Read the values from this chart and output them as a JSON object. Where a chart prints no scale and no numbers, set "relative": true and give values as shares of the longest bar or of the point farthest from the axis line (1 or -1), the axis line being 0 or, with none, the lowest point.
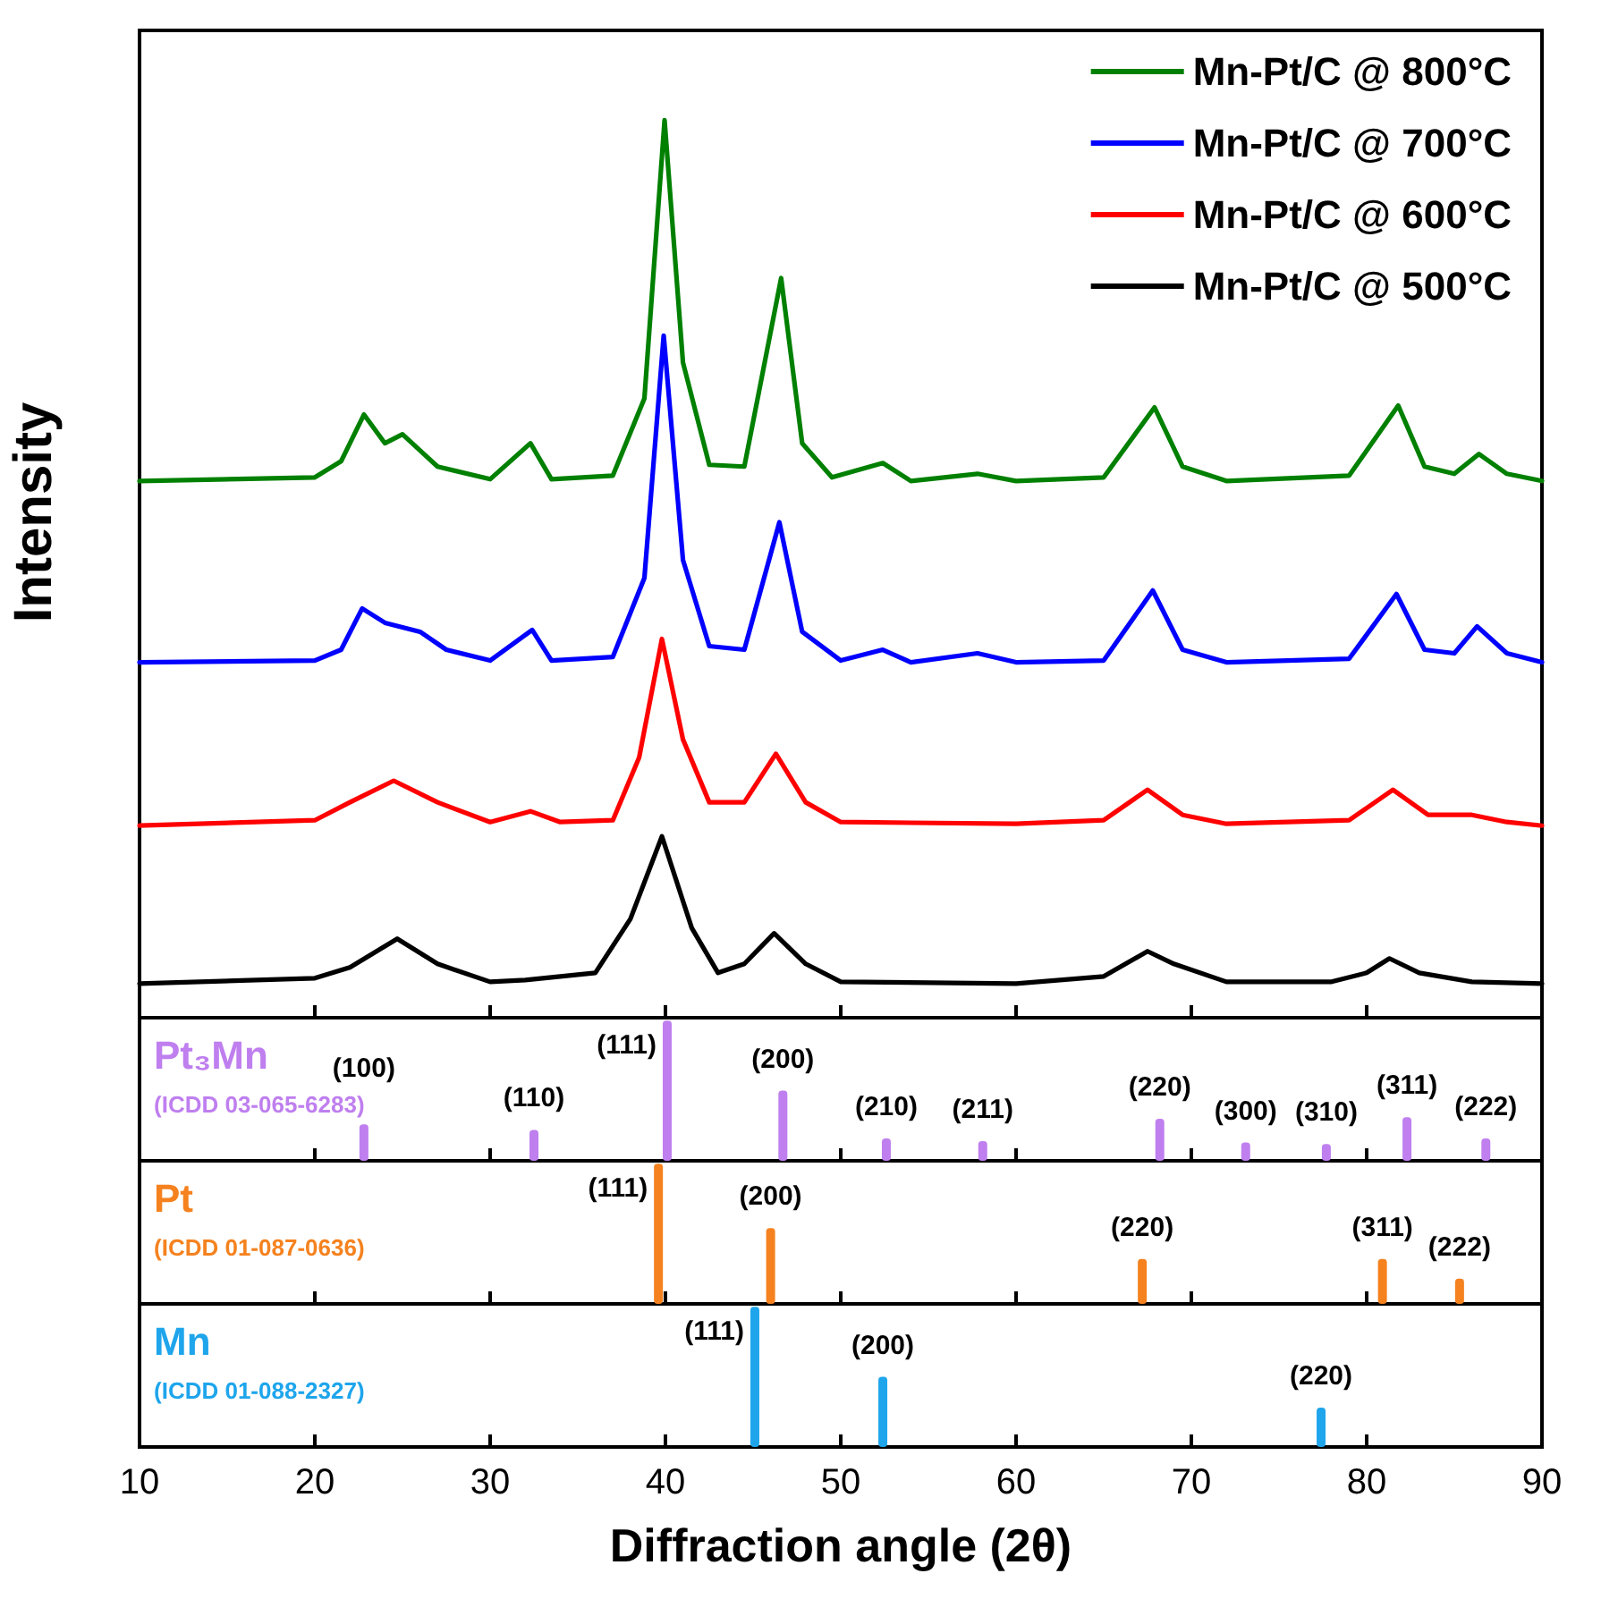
{
  "chart_data": [
    {
      "type": "line",
      "relative": true,
      "ylabel": "Intensity",
      "xlim": [
        10,
        90
      ],
      "xticks": [
        10,
        20,
        30,
        40,
        50,
        60,
        70,
        80,
        90
      ],
      "tick_labels": false,
      "grid": false,
      "marker": "none",
      "line_style": "solid",
      "legend": "top right",
      "series": [
        {
          "name": "Mn-Pt/C @ 800°C",
          "color": "#008000",
          "x": [
            10,
            20,
            21.5,
            22.8,
            24,
            25,
            27,
            30,
            32.3,
            33.5,
            37,
            38.8,
            39.95,
            41,
            42.5,
            44.5,
            46.6,
            47.8,
            49.5,
            52.4,
            54,
            57.8,
            60,
            65,
            67.9,
            69.5,
            72,
            79,
            81.8,
            83.3,
            85,
            86.4,
            88,
            90
          ],
          "values": [
            0.598,
            0.602,
            0.62,
            0.672,
            0.64,
            0.65,
            0.614,
            0.6,
            0.64,
            0.6,
            0.604,
            0.69,
            1,
            0.73,
            0.616,
            0.614,
            0.824,
            0.64,
            0.602,
            0.618,
            0.598,
            0.606,
            0.598,
            0.602,
            0.68,
            0.614,
            0.598,
            0.604,
            0.682,
            0.614,
            0.606,
            0.628,
            0.606,
            0.598
          ]
        },
        {
          "name": "Mn-Pt/C @ 700°C",
          "color": "#0000ff",
          "x": [
            10,
            20,
            21.5,
            22.7,
            24,
            26,
            27.5,
            30,
            32.4,
            33.5,
            37,
            38.8,
            39.9,
            41,
            42.5,
            44.5,
            46.5,
            47.8,
            50,
            52.4,
            54,
            57.8,
            60,
            65,
            67.8,
            69.5,
            72,
            79,
            81.7,
            83.3,
            85,
            86.3,
            88,
            90
          ],
          "values": [
            0.396,
            0.398,
            0.41,
            0.456,
            0.44,
            0.43,
            0.41,
            0.398,
            0.432,
            0.398,
            0.402,
            0.49,
            0.76,
            0.51,
            0.414,
            0.41,
            0.552,
            0.43,
            0.398,
            0.41,
            0.396,
            0.406,
            0.396,
            0.398,
            0.476,
            0.41,
            0.396,
            0.4,
            0.472,
            0.41,
            0.406,
            0.436,
            0.406,
            0.396
          ]
        },
        {
          "name": "Mn-Pt/C @ 600°C",
          "color": "#ff0000",
          "x": [
            10,
            20,
            22,
            24.5,
            27,
            30,
            32.3,
            34,
            37,
            38.5,
            39.8,
            41,
            42.5,
            44.5,
            46.3,
            48,
            50,
            60,
            65,
            67.5,
            69.5,
            72,
            79,
            81.5,
            83.5,
            86,
            88,
            90
          ],
          "values": [
            0.214,
            0.22,
            0.24,
            0.264,
            0.24,
            0.218,
            0.23,
            0.218,
            0.22,
            0.29,
            0.422,
            0.31,
            0.24,
            0.24,
            0.294,
            0.24,
            0.218,
            0.216,
            0.22,
            0.254,
            0.226,
            0.216,
            0.22,
            0.254,
            0.226,
            0.226,
            0.218,
            0.214
          ]
        },
        {
          "name": "Mn-Pt/C @ 500°C",
          "color": "#000000",
          "x": [
            10,
            20,
            22,
            24.7,
            27,
            30,
            32,
            36,
            38,
            39.8,
            41.5,
            43,
            44.5,
            46.2,
            48,
            50,
            60,
            65,
            67.5,
            69,
            72,
            78,
            80,
            81.3,
            83,
            86,
            90
          ],
          "values": [
            0.038,
            0.044,
            0.056,
            0.088,
            0.06,
            0.04,
            0.042,
            0.05,
            0.11,
            0.202,
            0.1,
            0.05,
            0.06,
            0.094,
            0.06,
            0.04,
            0.038,
            0.046,
            0.074,
            0.06,
            0.04,
            0.04,
            0.05,
            0.066,
            0.05,
            0.04,
            0.038
          ]
        }
      ]
    },
    {
      "type": "bar",
      "relative": true,
      "title": "Pt₃Mn",
      "color": "#bf7fef",
      "xlim": [
        10,
        90
      ],
      "xticks": [
        10,
        20,
        30,
        40,
        50,
        60,
        70,
        80,
        90
      ],
      "tick_labels": false,
      "grid": false,
      "x": [
        22.8,
        32.5,
        40.1,
        46.7,
        52.6,
        58.1,
        68.2,
        73.1,
        77.7,
        82.3,
        86.8
      ],
      "values": [
        0.26,
        0.22,
        1,
        0.5,
        0.16,
        0.14,
        0.3,
        0.13,
        0.12,
        0.31,
        0.16
      ],
      "annotations": [
        "(ICDD 03-065-6283)",
        {
          "text": "(100)",
          "x": 22.8,
          "y": 0.26
        },
        {
          "text": "(110)",
          "x": 32.5,
          "y": 0.22
        },
        {
          "text": "(111)",
          "x": 40.1,
          "y": 1
        },
        {
          "text": "(200)",
          "x": 46.7,
          "y": 0.5
        },
        {
          "text": "(210)",
          "x": 52.6,
          "y": 0.16
        },
        {
          "text": "(211)",
          "x": 58.1,
          "y": 0.14
        },
        {
          "text": "(220)",
          "x": 68.2,
          "y": 0.3
        },
        {
          "text": "(300)",
          "x": 73.1,
          "y": 0.13
        },
        {
          "text": "(310)",
          "x": 77.7,
          "y": 0.12
        },
        {
          "text": "(311)",
          "x": 82.3,
          "y": 0.31
        },
        {
          "text": "(222)",
          "x": 86.8,
          "y": 0.16
        }
      ]
    },
    {
      "type": "bar",
      "relative": true,
      "title": "Pt",
      "color": "#f5821f",
      "xlim": [
        10,
        90
      ],
      "xticks": [
        10,
        20,
        30,
        40,
        50,
        60,
        70,
        80,
        90
      ],
      "tick_labels": false,
      "grid": false,
      "x": [
        39.6,
        46.0,
        67.2,
        80.9,
        85.3
      ],
      "values": [
        1,
        0.54,
        0.32,
        0.32,
        0.18
      ],
      "annotations": [
        "(ICDD 01-087-0636)",
        {
          "text": "(111)",
          "x": 39.6,
          "y": 1
        },
        {
          "text": "(200)",
          "x": 46.0,
          "y": 0.54
        },
        {
          "text": "(220)",
          "x": 67.2,
          "y": 0.32
        },
        {
          "text": "(311)",
          "x": 80.9,
          "y": 0.32
        },
        {
          "text": "(222)",
          "x": 85.3,
          "y": 0.18
        }
      ]
    },
    {
      "type": "bar",
      "relative": true,
      "title": "Mn",
      "color": "#1ea5ec",
      "xlim": [
        10,
        90
      ],
      "xticks": [
        10,
        20,
        30,
        40,
        50,
        60,
        70,
        80,
        90
      ],
      "tick_labels": "x",
      "grid": false,
      "xlabel": "Diffraction angle (2θ)",
      "x": [
        45.1,
        52.4,
        77.4
      ],
      "values": [
        1,
        0.5,
        0.28
      ],
      "annotations": [
        "(ICDD 01-088-2327)",
        {
          "text": "(111)",
          "x": 45.1,
          "y": 1
        },
        {
          "text": "(200)",
          "x": 52.4,
          "y": 0.5
        },
        {
          "text": "(220)",
          "x": 77.4,
          "y": 0.28
        }
      ]
    }
  ]
}
